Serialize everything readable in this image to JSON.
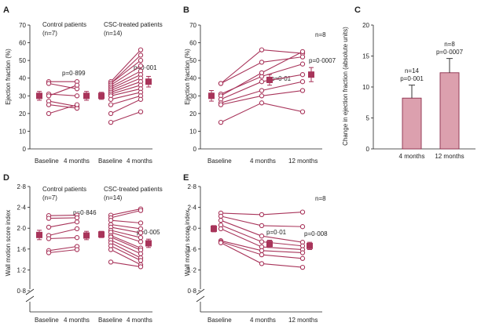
{
  "panels": [
    {
      "id": "A",
      "label": "A",
      "type": "line",
      "ylabel": "Ejection fraction (%)",
      "yticks": [
        0,
        10,
        20,
        30,
        40,
        50,
        60,
        70
      ],
      "ylim": [
        0,
        70
      ],
      "x_labels": [
        "Baseline",
        "4 months",
        "Baseline",
        "4 months"
      ],
      "groups": [
        {
          "name": "Control patients",
          "n_label": "(n=7)",
          "p_label": "p=0·899",
          "patients": [
            [
              38,
              38
            ],
            [
              37,
              34
            ],
            [
              31,
              30
            ],
            [
              30,
              36
            ],
            [
              27,
              24
            ],
            [
              25,
              23
            ],
            [
              20,
              25
            ]
          ],
          "mean": [
            30,
            30
          ],
          "err": [
            2.5,
            2.5
          ]
        },
        {
          "name": "CSC-treated patients",
          "n_label": "(n=14)",
          "p_label": "p=0·001",
          "patients": [
            [
              38,
              56
            ],
            [
              37,
              53
            ],
            [
              37,
              50
            ],
            [
              36,
              47
            ],
            [
              35,
              44
            ],
            [
              34,
              42
            ],
            [
              33,
              40
            ],
            [
              32,
              38
            ],
            [
              31,
              36
            ],
            [
              30,
              34
            ],
            [
              28,
              32
            ],
            [
              25,
              30
            ],
            [
              20,
              28
            ],
            [
              15,
              21
            ]
          ],
          "mean": [
            30,
            38
          ],
          "err": [
            2,
            3
          ]
        }
      ]
    },
    {
      "id": "B",
      "label": "B",
      "type": "line",
      "ylabel": "Ejection fraction (%)",
      "yticks": [
        0,
        10,
        20,
        30,
        40,
        50,
        60,
        70
      ],
      "ylim": [
        0,
        70
      ],
      "x_labels": [
        "Baseline",
        "4 months",
        "12 months"
      ],
      "n_label": "n=8",
      "p_labels": [
        "p=0·01",
        "p=0·0007"
      ],
      "patients": [
        [
          37,
          56,
          54
        ],
        [
          37,
          49,
          52
        ],
        [
          31,
          41,
          48
        ],
        [
          30,
          43,
          55
        ],
        [
          28,
          38,
          42
        ],
        [
          26,
          33,
          38
        ],
        [
          25,
          30,
          33
        ],
        [
          15,
          26,
          21
        ]
      ],
      "mean": [
        30,
        39,
        42
      ],
      "err": [
        3,
        3,
        4
      ]
    },
    {
      "id": "C",
      "label": "C",
      "type": "bar",
      "ylabel": "Change in ejection fraction (absolute units)",
      "yticks": [
        0,
        5,
        10,
        15,
        20
      ],
      "ylim": [
        0,
        20
      ],
      "categories": [
        "4 months",
        "12 months"
      ],
      "values": [
        8.2,
        12.3
      ],
      "err": [
        2.1,
        2.3
      ],
      "n_labels": [
        "n=14",
        "n=8"
      ],
      "p_labels": [
        "p=0·001",
        "p=0·0007"
      ]
    },
    {
      "id": "D",
      "label": "D",
      "type": "line",
      "ylabel": "Wall motion score index",
      "yticks": [
        0.8,
        1.2,
        1.6,
        2.0,
        2.4,
        2.8
      ],
      "ytick_labels": [
        "0·8",
        "1·2",
        "1·6",
        "2·0",
        "2·4",
        "2·8"
      ],
      "ylim": [
        0.8,
        2.8
      ],
      "x_labels": [
        "Baseline",
        "4 months",
        "Baseline",
        "4 months"
      ],
      "groups": [
        {
          "name": "Control patients",
          "n_label": "(n=7)",
          "p_label": "p=0·846",
          "patients": [
            [
              2.24,
              2.25
            ],
            [
              2.19,
              2.2
            ],
            [
              2.02,
              2.12
            ],
            [
              1.86,
              1.99
            ],
            [
              1.8,
              1.82
            ],
            [
              1.57,
              1.65
            ],
            [
              1.53,
              1.59
            ]
          ],
          "mean": [
            1.87,
            1.86
          ],
          "err": [
            0.09,
            0.08
          ]
        },
        {
          "name": "CSC-treated patients",
          "n_label": "(n=14)",
          "p_label": "p=0·005",
          "patients": [
            [
              2.25,
              2.37
            ],
            [
              2.2,
              2.34
            ],
            [
              2.15,
              2.1
            ],
            [
              2.07,
              1.99
            ],
            [
              2.02,
              1.91
            ],
            [
              1.96,
              1.82
            ],
            [
              1.92,
              1.74
            ],
            [
              1.86,
              1.62
            ],
            [
              1.83,
              1.58
            ],
            [
              1.77,
              1.51
            ],
            [
              1.72,
              1.43
            ],
            [
              1.66,
              1.38
            ],
            [
              1.59,
              1.3
            ],
            [
              1.35,
              1.26
            ]
          ],
          "mean": [
            1.88,
            1.71
          ],
          "err": [
            0.06,
            0.08
          ]
        }
      ]
    },
    {
      "id": "E",
      "label": "E",
      "type": "line",
      "ylabel": "Wall motion score index",
      "yticks": [
        0.8,
        1.2,
        1.6,
        2.0,
        2.4,
        2.8
      ],
      "ytick_labels": [
        "0·8",
        "1·2",
        "1·6",
        "2·0",
        "2·4",
        "2·8"
      ],
      "ylim": [
        0.8,
        2.8
      ],
      "x_labels": [
        "Baseline",
        "4 months",
        "12 months"
      ],
      "n_label": "n=8",
      "p_labels": [
        "p=0·01",
        "p=0·008"
      ],
      "patients": [
        [
          2.29,
          2.26,
          2.31
        ],
        [
          2.23,
          2.05,
          2.03
        ],
        [
          2.15,
          1.85,
          1.73
        ],
        [
          2.06,
          1.74,
          1.66
        ],
        [
          1.99,
          1.64,
          1.59
        ],
        [
          1.76,
          1.57,
          1.53
        ],
        [
          1.74,
          1.49,
          1.42
        ],
        [
          1.72,
          1.32,
          1.25
        ]
      ],
      "mean": [
        1.99,
        1.7,
        1.66
      ],
      "err": [
        0.06,
        0.07,
        0.07
      ]
    }
  ],
  "colors": {
    "series": "#a8345a",
    "marker_fill": "#ffffff",
    "mean": "#a8345a",
    "bar_fill": "#dca0ae",
    "bar_edge": "#8c2f4c",
    "text": "#222222",
    "axis": "#222222"
  }
}
